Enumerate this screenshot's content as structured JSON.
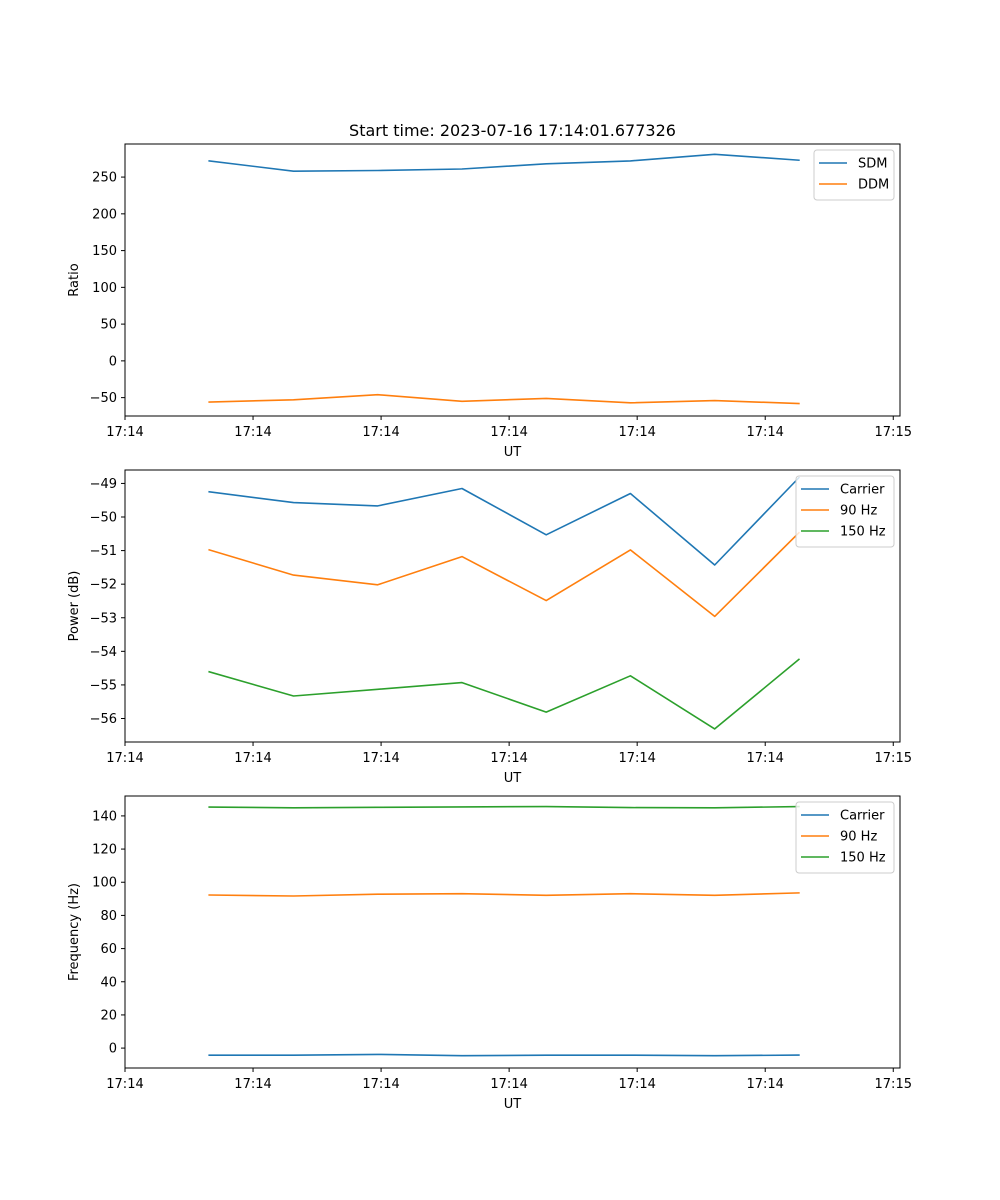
{
  "figure_title": "Start time: 2023-07-16 17:14:01.677326",
  "colors": {
    "blue": "#1f77b4",
    "orange": "#ff7f0e",
    "green": "#2ca02c"
  },
  "chart_data": [
    {
      "type": "line",
      "title": "Start time: 2023-07-16 17:14:01.677326",
      "xlabel": "UT",
      "ylabel": "Ratio",
      "x": [
        1,
        2,
        3,
        4,
        5,
        6,
        7,
        8
      ],
      "xlim": [
        0,
        9.2
      ],
      "x_ticks": [
        0,
        1.52,
        3.04,
        4.56,
        6.08,
        7.6,
        9.12
      ],
      "x_tick_labels": [
        "17:14",
        "17:14",
        "17:14",
        "17:14",
        "17:14",
        "17:14",
        "17:15"
      ],
      "ylim": [
        -75,
        295
      ],
      "y_ticks": [
        -50,
        0,
        50,
        100,
        150,
        200,
        250
      ],
      "y_tick_labels": [
        "−50",
        "0",
        "50",
        "100",
        "150",
        "200",
        "250"
      ],
      "legend_position": "top-right",
      "grid": false,
      "series": [
        {
          "name": "SDM",
          "color": "#1f77b4",
          "values": [
            272,
            258,
            259,
            261,
            268,
            272,
            281,
            273
          ]
        },
        {
          "name": "DDM",
          "color": "#ff7f0e",
          "values": [
            -56,
            -53,
            -46,
            -55,
            -51,
            -57,
            -54,
            -58
          ]
        }
      ]
    },
    {
      "type": "line",
      "title": "",
      "xlabel": "UT",
      "ylabel": "Power (dB)",
      "x": [
        1,
        2,
        3,
        4,
        5,
        6,
        7,
        8
      ],
      "xlim": [
        0,
        9.2
      ],
      "x_ticks": [
        0,
        1.52,
        3.04,
        4.56,
        6.08,
        7.6,
        9.12
      ],
      "x_tick_labels": [
        "17:14",
        "17:14",
        "17:14",
        "17:14",
        "17:14",
        "17:14",
        "17:15"
      ],
      "ylim": [
        -56.7,
        -48.6
      ],
      "y_ticks": [
        -56,
        -55,
        -54,
        -53,
        -52,
        -51,
        -50,
        -49
      ],
      "y_tick_labels": [
        "−56",
        "−55",
        "−54",
        "−53",
        "−52",
        "−51",
        "−50",
        "−49"
      ],
      "legend_position": "top-right",
      "grid": false,
      "series": [
        {
          "name": "Carrier",
          "color": "#1f77b4",
          "values": [
            -49.25,
            -49.57,
            -49.67,
            -49.15,
            -50.53,
            -49.3,
            -51.43,
            -48.83
          ]
        },
        {
          "name": "90 Hz",
          "color": "#ff7f0e",
          "values": [
            -50.98,
            -51.73,
            -52.02,
            -51.18,
            -52.49,
            -50.98,
            -52.96,
            -50.47
          ]
        },
        {
          "name": "150 Hz",
          "color": "#2ca02c",
          "values": [
            -54.61,
            -55.33,
            -55.13,
            -54.93,
            -55.81,
            -54.73,
            -56.31,
            -54.24
          ]
        }
      ]
    },
    {
      "type": "line",
      "title": "",
      "xlabel": "UT",
      "ylabel": "Frequency (Hz)",
      "x": [
        1,
        2,
        3,
        4,
        5,
        6,
        7,
        8
      ],
      "xlim": [
        0,
        9.2
      ],
      "x_ticks": [
        0,
        1.52,
        3.04,
        4.56,
        6.08,
        7.6,
        9.12
      ],
      "x_tick_labels": [
        "17:14",
        "17:14",
        "17:14",
        "17:14",
        "17:14",
        "17:14",
        "17:15"
      ],
      "ylim": [
        -12,
        152
      ],
      "y_ticks": [
        0,
        20,
        40,
        60,
        80,
        100,
        120,
        140
      ],
      "y_tick_labels": [
        "0",
        "20",
        "40",
        "60",
        "80",
        "100",
        "120",
        "140"
      ],
      "legend_position": "top-right",
      "grid": false,
      "series": [
        {
          "name": "Carrier",
          "color": "#1f77b4",
          "values": [
            -4.3,
            -4.3,
            -3.8,
            -4.6,
            -4.3,
            -4.3,
            -4.6,
            -4.2
          ]
        },
        {
          "name": "90 Hz",
          "color": "#ff7f0e",
          "values": [
            92.3,
            91.7,
            92.8,
            93.1,
            92.1,
            93.1,
            92.1,
            93.6
          ]
        },
        {
          "name": "150 Hz",
          "color": "#2ca02c",
          "values": [
            145.3,
            144.9,
            145.2,
            145.4,
            145.6,
            145.0,
            144.9,
            145.6
          ]
        }
      ]
    }
  ]
}
